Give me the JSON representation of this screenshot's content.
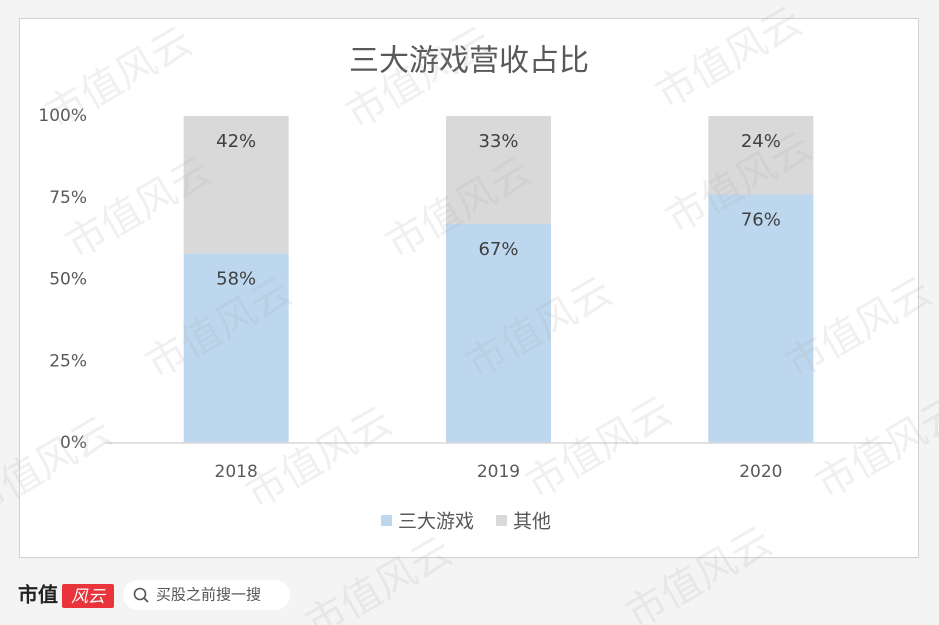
{
  "chart_data": {
    "type": "bar",
    "stacked": true,
    "title": "三大游戏营收占比",
    "categories": [
      "2018",
      "2019",
      "2020"
    ],
    "series": [
      {
        "name": "三大游戏",
        "color": "#bdd7ee",
        "values": [
          58,
          67,
          76
        ],
        "value_labels": [
          "58%",
          "67%",
          "76%"
        ]
      },
      {
        "name": "其他",
        "color": "#d9d9d9",
        "values": [
          42,
          33,
          24
        ],
        "value_labels": [
          "42%",
          "33%",
          "24%"
        ]
      }
    ],
    "ylim": [
      0,
      100
    ],
    "yticks": [
      {
        "value": 0,
        "label": "0%"
      },
      {
        "value": 25,
        "label": "25%"
      },
      {
        "value": 50,
        "label": "50%"
      },
      {
        "value": 75,
        "label": "75%"
      },
      {
        "value": 100,
        "label": "100%"
      }
    ],
    "grid": false,
    "legend": "bottom"
  },
  "footer": {
    "brand": "市值",
    "brand_accent": "风云",
    "search_placeholder": "买股之前搜一搜"
  },
  "watermark": "市值风云"
}
